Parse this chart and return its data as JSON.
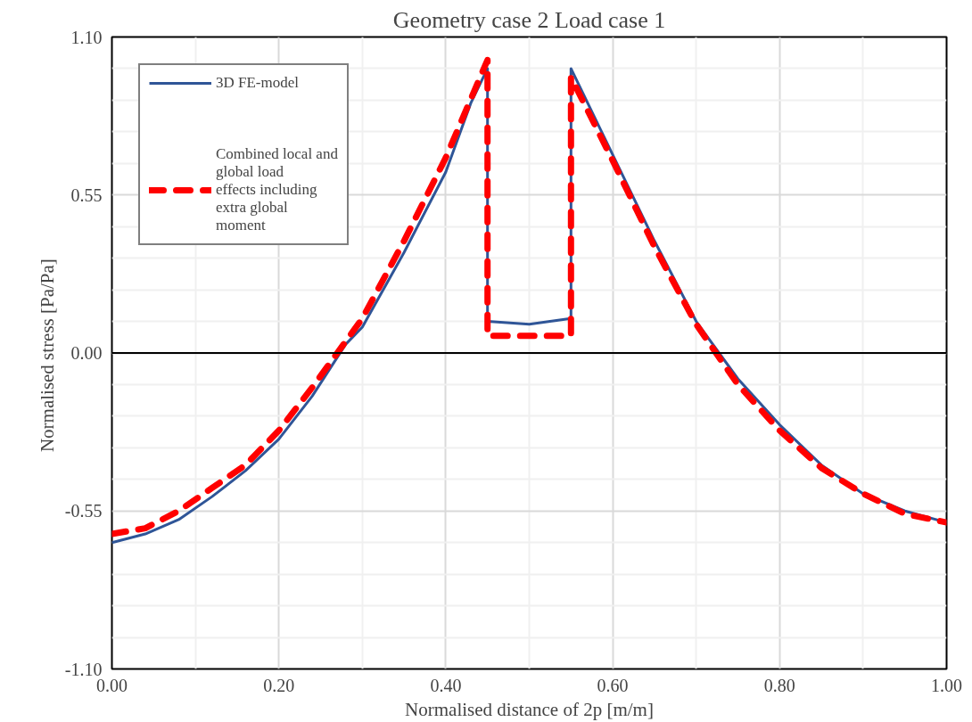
{
  "chart_data": {
    "type": "line",
    "title": "Geometry case 2 Load case 1",
    "xlabel": "Normalised distance of 2p [m/m]",
    "ylabel": "Normalised  stress [Pa/Pa]",
    "series": [
      {
        "name": "3D FE-model",
        "color": "#2f5597",
        "line_style": "solid",
        "x": [
          0,
          0.04,
          0.08,
          0.12,
          0.16,
          0.2,
          0.24,
          0.28,
          0.3,
          0.35,
          0.4,
          0.43,
          0.45,
          0.45,
          0.5,
          0.55,
          0.55,
          0.6,
          0.65,
          0.7,
          0.75,
          0.8,
          0.85,
          0.9,
          0.95,
          1.0
        ],
        "values": [
          -0.66,
          -0.63,
          -0.58,
          -0.5,
          -0.41,
          -0.3,
          -0.15,
          0.03,
          0.09,
          0.35,
          0.63,
          0.87,
          0.99,
          0.11,
          0.1,
          0.12,
          0.99,
          0.69,
          0.39,
          0.11,
          -0.09,
          -0.25,
          -0.39,
          -0.49,
          -0.55,
          -0.59
        ]
      },
      {
        "name": "Combined local and global load effects including extra global moment",
        "color": "#ff0000",
        "line_style": "dashed",
        "x": [
          0,
          0.04,
          0.08,
          0.12,
          0.16,
          0.2,
          0.24,
          0.27,
          0.3,
          0.35,
          0.4,
          0.45,
          0.45,
          0.55,
          0.55,
          0.6,
          0.65,
          0.7,
          0.75,
          0.8,
          0.85,
          0.9,
          0.95,
          1.0
        ],
        "values": [
          -0.63,
          -0.61,
          -0.55,
          -0.47,
          -0.39,
          -0.27,
          -0.12,
          0,
          0.12,
          0.39,
          0.68,
          1.02,
          0.06,
          0.06,
          0.96,
          0.67,
          0.37,
          0.1,
          -0.11,
          -0.27,
          -0.4,
          -0.49,
          -0.56,
          -0.59
        ]
      }
    ],
    "xlim": [
      0,
      1
    ],
    "xticks": [
      {
        "value": 0,
        "label": "0.00"
      },
      {
        "value": 0.1,
        "label": null
      },
      {
        "value": 0.2,
        "label": "0.20"
      },
      {
        "value": 0.3,
        "label": null
      },
      {
        "value": 0.4,
        "label": "0.40"
      },
      {
        "value": 0.5,
        "label": null
      },
      {
        "value": 0.6,
        "label": "0.60"
      },
      {
        "value": 0.7,
        "label": null
      },
      {
        "value": 0.8,
        "label": "0.80"
      },
      {
        "value": 0.9,
        "label": null
      },
      {
        "value": 1,
        "label": "1.00"
      }
    ],
    "ylim": [
      -1.1,
      1.1
    ],
    "yticks": [
      {
        "value": -1.1,
        "label": "-1.10"
      },
      {
        "value": -0.99,
        "label": null
      },
      {
        "value": -0.88,
        "label": null
      },
      {
        "value": -0.77,
        "label": null
      },
      {
        "value": -0.66,
        "label": null
      },
      {
        "value": -0.55,
        "label": "-0.55"
      },
      {
        "value": -0.44,
        "label": null
      },
      {
        "value": -0.33,
        "label": null
      },
      {
        "value": -0.22,
        "label": null
      },
      {
        "value": -0.11,
        "label": null
      },
      {
        "value": 0,
        "label": "0.00"
      },
      {
        "value": 0.11,
        "label": null
      },
      {
        "value": 0.22,
        "label": null
      },
      {
        "value": 0.33,
        "label": null
      },
      {
        "value": 0.44,
        "label": null
      },
      {
        "value": 0.55,
        "label": "0.55"
      },
      {
        "value": 0.66,
        "label": null
      },
      {
        "value": 0.77,
        "label": null
      },
      {
        "value": 0.88,
        "label": null
      },
      {
        "value": 0.99,
        "label": null
      },
      {
        "value": 1.1,
        "label": "1.10"
      }
    ],
    "ref_lines": [
      {
        "axis": "y",
        "value": 0,
        "color": "#000000"
      }
    ],
    "grid": true,
    "legend": "top left"
  }
}
